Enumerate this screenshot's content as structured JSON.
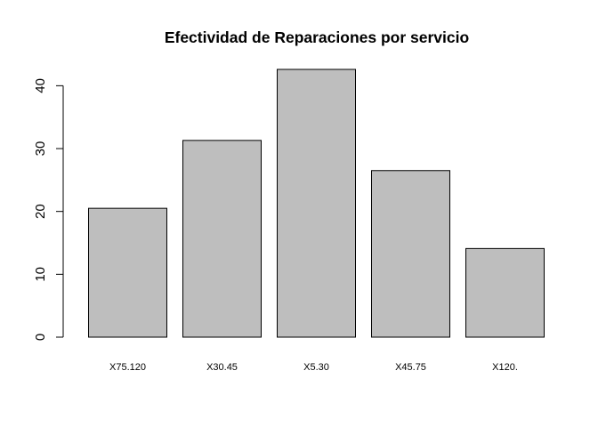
{
  "chart_data": {
    "type": "bar",
    "title": "Efectividad de Reparaciones por servicio",
    "xlabel": "",
    "ylabel": "",
    "categories": [
      "X75.120",
      "X30.45",
      "X5.30",
      "X45.75",
      "X120."
    ],
    "values": [
      20.5,
      31.3,
      42.6,
      26.5,
      14.1
    ],
    "ylim": [
      0,
      42.6
    ],
    "yticks": [
      0,
      10,
      20,
      30,
      40
    ],
    "grid": false,
    "legend": "none",
    "bar_fill": "#bebebe",
    "bar_stroke": "#000000"
  }
}
